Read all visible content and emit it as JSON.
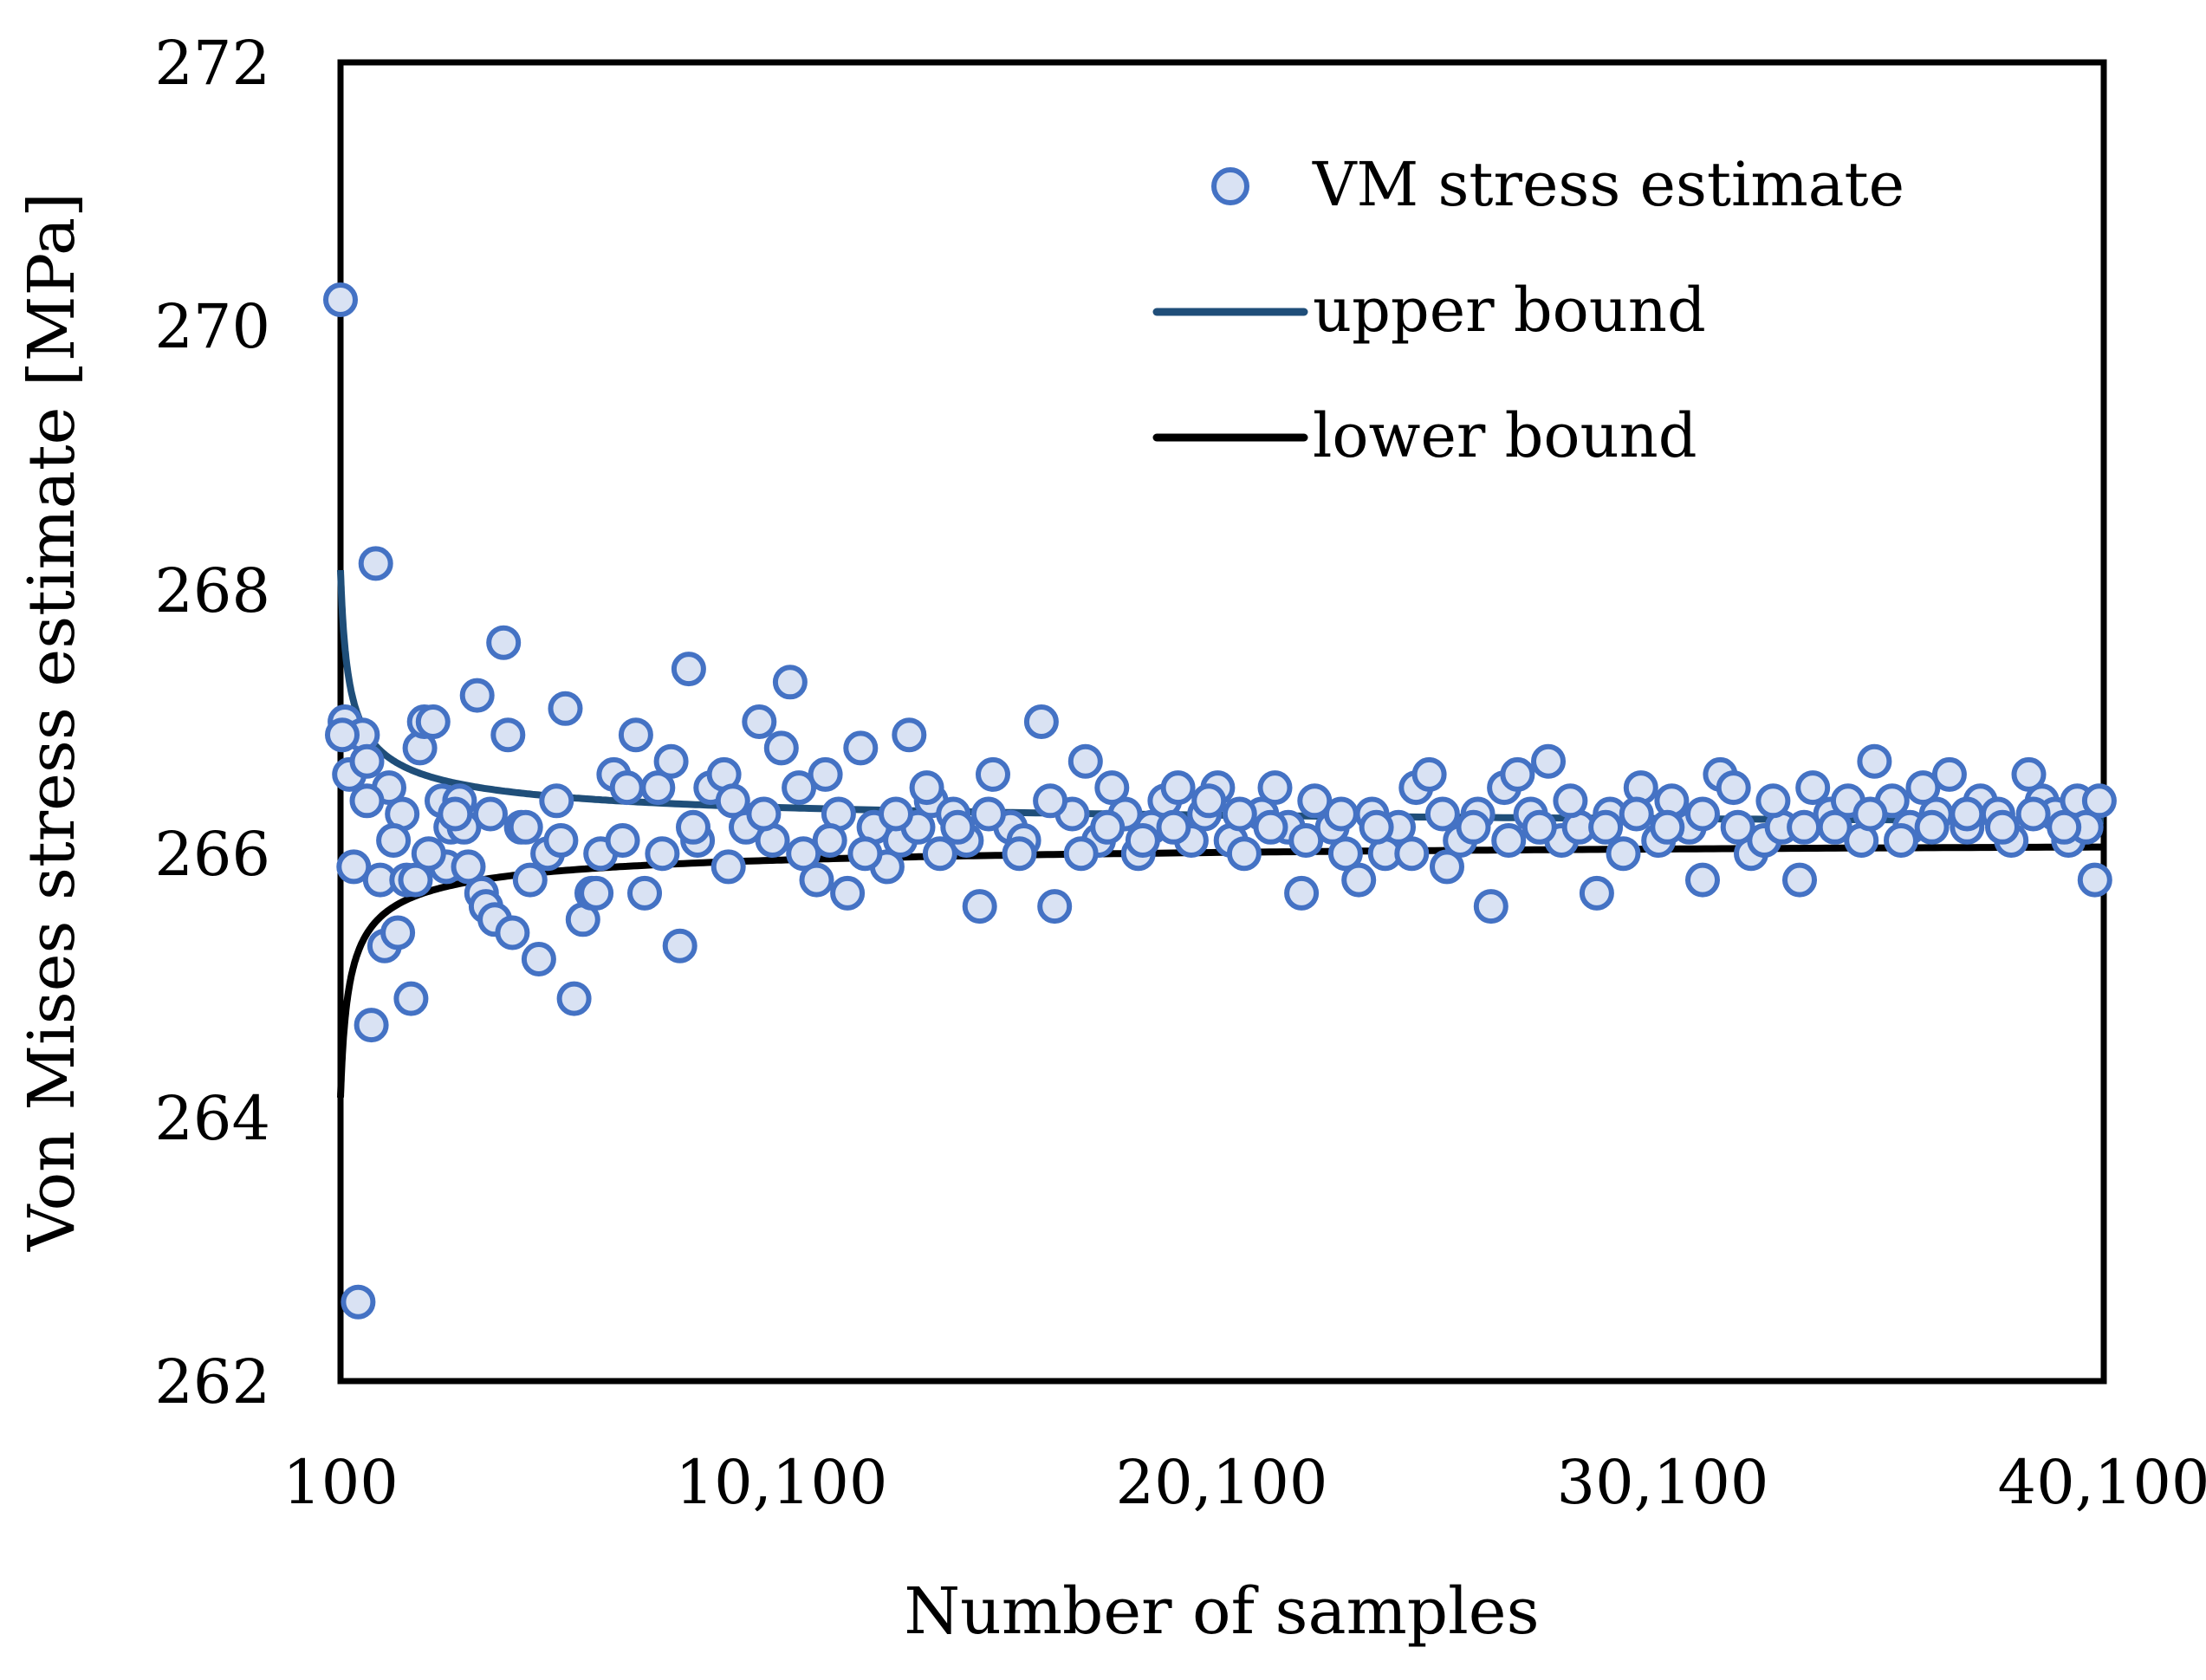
{
  "chart_data": {
    "type": "scatter",
    "xlabel": "Number of samples",
    "ylabel": "Von Mises stress estimate [MPa]",
    "xlim": [
      100,
      40100
    ],
    "ylim": [
      262,
      272
    ],
    "xticks": [
      100,
      10100,
      20100,
      30100,
      40100
    ],
    "xtick_labels": [
      "100",
      "10,100",
      "20,100",
      "30,100",
      "40,100"
    ],
    "yticks": [
      262,
      264,
      266,
      268,
      270,
      272
    ],
    "ytick_labels": [
      "262",
      "264",
      "266",
      "268",
      "270",
      "272"
    ],
    "legend_position": "top-right",
    "series": [
      {
        "name": "VM stress estimate",
        "kind": "markers",
        "color": "#4472C4",
        "fill": "#D9E2F3",
        "points": [
          [
            100,
            270.2
          ],
          [
            200,
            267.0
          ],
          [
            300,
            266.6
          ],
          [
            400,
            265.9
          ],
          [
            500,
            262.6
          ],
          [
            600,
            266.9
          ],
          [
            700,
            266.7
          ],
          [
            800,
            264.7
          ],
          [
            900,
            268.2
          ],
          [
            1000,
            265.8
          ],
          [
            1100,
            265.3
          ],
          [
            1200,
            266.5
          ],
          [
            1400,
            265.4
          ],
          [
            1500,
            266.3
          ],
          [
            1600,
            265.8
          ],
          [
            1700,
            264.9
          ],
          [
            1800,
            265.8
          ],
          [
            1900,
            266.8
          ],
          [
            2000,
            267.0
          ],
          [
            2200,
            267.0
          ],
          [
            2400,
            266.4
          ],
          [
            2500,
            265.9
          ],
          [
            2600,
            266.2
          ],
          [
            2800,
            266.4
          ],
          [
            2900,
            266.2
          ],
          [
            3000,
            265.9
          ],
          [
            3200,
            267.2
          ],
          [
            3300,
            265.7
          ],
          [
            3400,
            265.6
          ],
          [
            3600,
            265.5
          ],
          [
            3800,
            267.6
          ],
          [
            3900,
            266.9
          ],
          [
            4000,
            265.4
          ],
          [
            4200,
            266.2
          ],
          [
            4400,
            265.8
          ],
          [
            4600,
            265.2
          ],
          [
            4800,
            266.0
          ],
          [
            5000,
            266.4
          ],
          [
            5200,
            267.1
          ],
          [
            5400,
            264.9
          ],
          [
            5600,
            265.5
          ],
          [
            5800,
            265.7
          ],
          [
            6000,
            266.0
          ],
          [
            6300,
            266.6
          ],
          [
            6500,
            266.1
          ],
          [
            6800,
            266.9
          ],
          [
            7000,
            265.7
          ],
          [
            7300,
            266.5
          ],
          [
            7600,
            266.7
          ],
          [
            7800,
            265.3
          ],
          [
            8000,
            267.4
          ],
          [
            8200,
            266.1
          ],
          [
            8500,
            266.5
          ],
          [
            8800,
            266.6
          ],
          [
            9000,
            266.4
          ],
          [
            9300,
            266.2
          ],
          [
            9600,
            267.0
          ],
          [
            9900,
            266.1
          ],
          [
            10100,
            266.8
          ],
          [
            10300,
            267.3
          ],
          [
            10600,
            266.0
          ],
          [
            10900,
            265.8
          ],
          [
            11100,
            266.6
          ],
          [
            11400,
            266.3
          ],
          [
            11600,
            265.7
          ],
          [
            11900,
            266.8
          ],
          [
            12200,
            266.2
          ],
          [
            12500,
            265.9
          ],
          [
            12800,
            266.1
          ],
          [
            13000,
            266.9
          ],
          [
            13200,
            266.2
          ],
          [
            13500,
            266.4
          ],
          [
            13700,
            266.0
          ],
          [
            14000,
            266.3
          ],
          [
            14300,
            266.1
          ],
          [
            14600,
            265.6
          ],
          [
            14900,
            266.6
          ],
          [
            15300,
            266.2
          ],
          [
            15600,
            266.1
          ],
          [
            16000,
            267.0
          ],
          [
            16300,
            265.6
          ],
          [
            16700,
            266.3
          ],
          [
            17000,
            266.7
          ],
          [
            17300,
            266.1
          ],
          [
            17600,
            266.5
          ],
          [
            17900,
            266.3
          ],
          [
            18200,
            266.0
          ],
          [
            18500,
            266.2
          ],
          [
            18800,
            266.4
          ],
          [
            19100,
            266.5
          ],
          [
            19400,
            266.1
          ],
          [
            19700,
            266.3
          ],
          [
            20000,
            266.5
          ],
          [
            20300,
            266.1
          ],
          [
            20600,
            266.0
          ],
          [
            21000,
            266.3
          ],
          [
            21300,
            266.5
          ],
          [
            21600,
            266.2
          ],
          [
            21900,
            265.7
          ],
          [
            22200,
            266.4
          ],
          [
            22600,
            266.2
          ],
          [
            22900,
            266.0
          ],
          [
            23200,
            265.8
          ],
          [
            23500,
            266.3
          ],
          [
            23800,
            266.0
          ],
          [
            24100,
            266.2
          ],
          [
            24500,
            266.5
          ],
          [
            24800,
            266.6
          ],
          [
            25200,
            265.9
          ],
          [
            25500,
            266.1
          ],
          [
            25900,
            266.3
          ],
          [
            26200,
            265.6
          ],
          [
            26500,
            266.5
          ],
          [
            26800,
            266.6
          ],
          [
            27100,
            266.3
          ],
          [
            27500,
            266.7
          ],
          [
            27800,
            266.1
          ],
          [
            28200,
            266.2
          ],
          [
            28600,
            265.7
          ],
          [
            28900,
            266.3
          ],
          [
            29200,
            266.0
          ],
          [
            29600,
            266.5
          ],
          [
            30000,
            266.1
          ],
          [
            30300,
            266.4
          ],
          [
            30700,
            266.2
          ],
          [
            31000,
            265.8
          ],
          [
            31400,
            266.6
          ],
          [
            31700,
            266.5
          ],
          [
            32100,
            266.0
          ],
          [
            32400,
            266.1
          ],
          [
            32800,
            266.2
          ],
          [
            33200,
            265.8
          ],
          [
            33500,
            266.5
          ],
          [
            33900,
            266.3
          ],
          [
            34300,
            266.4
          ],
          [
            34600,
            266.1
          ],
          [
            34900,
            266.7
          ],
          [
            35300,
            266.4
          ],
          [
            35700,
            266.2
          ],
          [
            36000,
            266.5
          ],
          [
            36300,
            266.3
          ],
          [
            36600,
            266.6
          ],
          [
            37000,
            266.2
          ],
          [
            37300,
            266.4
          ],
          [
            37700,
            266.3
          ],
          [
            38000,
            266.1
          ],
          [
            38400,
            266.6
          ],
          [
            38700,
            266.4
          ],
          [
            39000,
            266.3
          ],
          [
            39300,
            266.1
          ],
          [
            39500,
            266.4
          ],
          [
            39700,
            266.2
          ],
          [
            39900,
            265.8
          ],
          [
            40000,
            266.4
          ],
          [
            140,
            266.9
          ],
          [
            700,
            266.4
          ],
          [
            1300,
            266.1
          ],
          [
            2100,
            266.0
          ],
          [
            2700,
            266.3
          ],
          [
            3500,
            266.3
          ],
          [
            4300,
            266.2
          ],
          [
            5100,
            266.1
          ],
          [
            5900,
            265.7
          ],
          [
            6600,
            266.5
          ],
          [
            7400,
            266.0
          ],
          [
            8100,
            266.2
          ],
          [
            8900,
            265.9
          ],
          [
            9700,
            266.3
          ],
          [
            10500,
            266.5
          ],
          [
            11200,
            266.1
          ],
          [
            12000,
            266.0
          ],
          [
            12700,
            266.3
          ],
          [
            13400,
            266.5
          ],
          [
            14100,
            266.2
          ],
          [
            14800,
            266.3
          ],
          [
            15500,
            266.0
          ],
          [
            16200,
            266.4
          ],
          [
            16900,
            266.0
          ],
          [
            17500,
            266.2
          ],
          [
            18300,
            266.1
          ],
          [
            19000,
            266.2
          ],
          [
            19800,
            266.4
          ],
          [
            20500,
            266.3
          ],
          [
            21200,
            266.2
          ],
          [
            22000,
            266.1
          ],
          [
            22800,
            266.3
          ],
          [
            23600,
            266.2
          ],
          [
            24400,
            266.0
          ],
          [
            25100,
            266.3
          ],
          [
            25800,
            266.2
          ],
          [
            26600,
            266.1
          ],
          [
            27300,
            266.2
          ],
          [
            28000,
            266.4
          ],
          [
            28800,
            266.2
          ],
          [
            29500,
            266.3
          ],
          [
            30200,
            266.2
          ],
          [
            31000,
            266.3
          ],
          [
            31800,
            266.2
          ],
          [
            32600,
            266.4
          ],
          [
            33300,
            266.2
          ],
          [
            34000,
            266.2
          ],
          [
            34800,
            266.3
          ],
          [
            35500,
            266.1
          ],
          [
            36200,
            266.2
          ],
          [
            37000,
            266.3
          ],
          [
            37800,
            266.2
          ],
          [
            38500,
            266.3
          ],
          [
            39200,
            266.2
          ]
        ]
      },
      {
        "name": "upper bound",
        "kind": "line",
        "color": "#1F4E79",
        "formula": "266.15 + 20 / sqrt(N)"
      },
      {
        "name": "lower bound",
        "kind": "line",
        "color": "#000000",
        "formula": "266.15 - 20 / sqrt(N)"
      }
    ]
  }
}
